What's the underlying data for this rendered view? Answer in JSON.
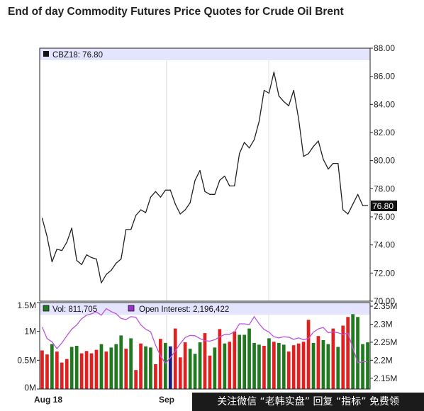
{
  "title": "End of day Commodity Futures Price Quotes for Crude Oil Brent",
  "watermark": "关注微信 “老韩实盘” 回复 “指标” 免费领",
  "chart_data": [
    {
      "type": "line",
      "legend": "CBZ18: 76.80",
      "last_value_label": "76.80",
      "y_ticks": [
        "88.00",
        "86.00",
        "84.00",
        "82.00",
        "80.00",
        "78.00",
        "76.00",
        "74.00",
        "72.00",
        "70.00"
      ],
      "ylim": [
        70,
        88
      ],
      "n": 67,
      "close": [
        75.9,
        74.6,
        72.8,
        73.7,
        73.6,
        74.2,
        75.2,
        72.9,
        72.6,
        73.3,
        73.1,
        73.0,
        71.3,
        71.9,
        72.2,
        72.7,
        73.0,
        75.1,
        75.1,
        76.1,
        76.5,
        76.3,
        77.4,
        77.8,
        77.4,
        77.9,
        77.9,
        76.9,
        76.2,
        76.5,
        77.0,
        78.6,
        79.3,
        77.8,
        77.6,
        77.6,
        78.6,
        78.9,
        78.2,
        78.2,
        80.5,
        81.3,
        80.9,
        81.5,
        82.8,
        85.0,
        84.8,
        86.3,
        84.6,
        84.2,
        83.9,
        85.0,
        83.0,
        80.3,
        80.5,
        81.0,
        81.4,
        80.1,
        79.4,
        79.8,
        79.8,
        76.5,
        76.2,
        76.9,
        77.6,
        76.8,
        76.8
      ],
      "line_color": "#222222",
      "background": "#ffffff",
      "legend_band_color": "#e4e4ff"
    },
    {
      "type": "bar",
      "legend_volume": "Vol: 811,705",
      "legend_open_interest": "Open Interest: 2,196,422",
      "volume_ticks": [
        "1.5M",
        "1M",
        "0.5M",
        "0M"
      ],
      "volume_ylim": [
        0,
        1500000
      ],
      "oi_ticks": [
        "2.35M",
        "2.3M",
        "2.25M",
        "2.2M",
        "2.15M"
      ],
      "oi_ylim": [
        2120000,
        2360000
      ],
      "x_tick_labels": [
        "Aug 18",
        "Sep"
      ],
      "volume": [
        670000,
        600000,
        780000,
        650000,
        460000,
        520000,
        730000,
        750000,
        620000,
        660000,
        620000,
        680000,
        780000,
        650000,
        720000,
        780000,
        930000,
        700000,
        880000,
        330000,
        790000,
        740000,
        720000,
        430000,
        870000,
        800000,
        740000,
        1050000,
        550000,
        810000,
        700000,
        610000,
        810000,
        970000,
        580000,
        720000,
        1040000,
        790000,
        820000,
        1000000,
        940000,
        940000,
        1050000,
        800000,
        770000,
        750000,
        880000,
        820000,
        800000,
        770000,
        650000,
        760000,
        790000,
        820000,
        1200000,
        800000,
        920000,
        850000,
        780000,
        1050000,
        730000,
        1100000,
        1250000,
        1300000,
        1250000,
        780000,
        810000
      ],
      "volume_up": [
        false,
        false,
        true,
        false,
        false,
        false,
        true,
        true,
        false,
        false,
        false,
        false,
        true,
        false,
        true,
        true,
        true,
        false,
        true,
        false,
        false,
        true,
        true,
        false,
        false,
        true,
        false,
        false,
        false,
        false,
        true,
        true,
        true,
        false,
        false,
        true,
        false,
        true,
        false,
        false,
        true,
        true,
        true,
        true,
        true,
        false,
        true,
        false,
        true,
        true,
        false,
        false,
        false,
        false,
        false,
        true,
        false,
        true,
        true,
        false,
        true,
        false,
        false,
        true,
        true,
        true,
        true
      ],
      "volume_highlight_index": 26,
      "open_interest": [
        2292000,
        2260000,
        2251000,
        2232000,
        2248000,
        2268000,
        2286000,
        2298000,
        2315000,
        2325000,
        2329000,
        2334000,
        2325000,
        2343000,
        2335000,
        2329000,
        2316000,
        2313000,
        2321000,
        2319000,
        2298000,
        2286000,
        2279000,
        2242000,
        2212000,
        2191000,
        2207000,
        2226000,
        2246000,
        2263000,
        2269000,
        2268000,
        2260000,
        2254000,
        2253000,
        2257000,
        2265000,
        2271000,
        2272000,
        2279000,
        2301000,
        2301000,
        2299000,
        2321000,
        2301000,
        2285000,
        2278000,
        2265000,
        2262000,
        2265000,
        2264000,
        2258000,
        2262000,
        2257000,
        2260000,
        2278000,
        2287000,
        2291000,
        2276000,
        2279000,
        2276000,
        2272000,
        2275000,
        2234000,
        2193000,
        2196000,
        2196000
      ],
      "up_color": "#1f7a1f",
      "down_color": "#e02020",
      "highlight_color": "#1a1a7a",
      "oi_color": "#bb55dd"
    }
  ]
}
